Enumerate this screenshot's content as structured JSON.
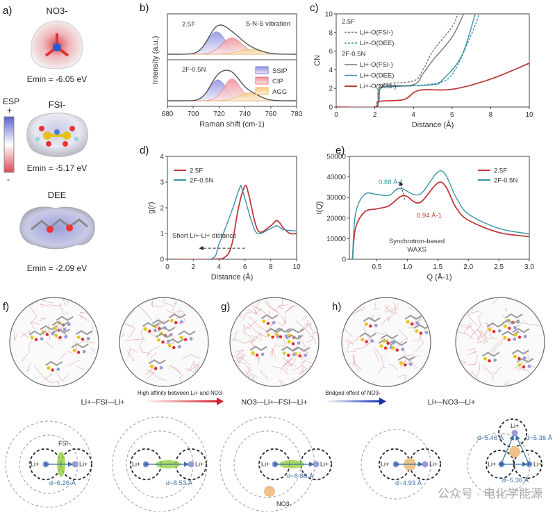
{
  "panels": {
    "a": {
      "label": "a)",
      "molecules": [
        {
          "name": "NO3-",
          "emin": "Emin = -6.05 eV"
        },
        {
          "name": "FSI-",
          "emin": "Emin = -5.17 eV"
        },
        {
          "name": "DEE",
          "emin": "Emin = -2.09 eV"
        }
      ],
      "esp": {
        "title": "ESP",
        "plus": "+",
        "minus": "-"
      }
    },
    "f": {
      "label": "f)"
    },
    "g": {
      "label": "g)"
    },
    "h": {
      "label": "h)"
    }
  },
  "colors": {
    "red": "#c0393b",
    "teal": "#3a93a8",
    "gray": "#777777",
    "ssip": "#8d8fe0",
    "cip": "#f08c95",
    "agg": "#f5d08a"
  },
  "chart_data": [
    {
      "id": "b",
      "label": "b)",
      "type": "area",
      "xlabel": "Raman shift (cm-1)",
      "ylabel": "Intensity (a.u.)",
      "xlim": [
        680,
        780
      ],
      "xticks": [
        "680",
        "700",
        "720",
        "740",
        "760",
        "780"
      ],
      "annotation": "S-N-S vibration",
      "legend": [
        "SSIP",
        "CIP",
        "AGG"
      ],
      "subplots": [
        {
          "name": "2.5F",
          "components": [
            {
              "name": "SSIP",
              "center": 718,
              "height": 0.62,
              "width": 7
            },
            {
              "name": "CIP",
              "center": 730,
              "height": 0.45,
              "width": 8
            },
            {
              "name": "AGG",
              "center": 744,
              "height": 0.13,
              "width": 9
            }
          ]
        },
        {
          "name": "2F-0.5N",
          "components": [
            {
              "name": "SSIP",
              "center": 719,
              "height": 0.58,
              "width": 6.5
            },
            {
              "name": "CIP",
              "center": 730,
              "height": 0.6,
              "width": 6.5
            },
            {
              "name": "AGG",
              "center": 743,
              "height": 0.22,
              "width": 8
            }
          ]
        }
      ]
    },
    {
      "id": "c",
      "label": "c)",
      "type": "line",
      "xlabel": "Distance (Å)",
      "ylabel": "CN",
      "xlim": [
        0,
        10
      ],
      "ylim": [
        0,
        10
      ],
      "xticks": [
        "0",
        "2",
        "4",
        "6",
        "8",
        "10"
      ],
      "yticks": [
        "0",
        "2",
        "4",
        "6",
        "8",
        "10"
      ],
      "groups": [
        "2.5F",
        "2F-0.5N"
      ],
      "series": [
        {
          "name": "Li+-O(FSI-)",
          "group": "2.5F",
          "style": "dashed",
          "color": "#777777",
          "points": [
            [
              0,
              0
            ],
            [
              2,
              0
            ],
            [
              2.2,
              2
            ],
            [
              2.5,
              2.5
            ],
            [
              4,
              2.8
            ],
            [
              4.5,
              4
            ],
            [
              5,
              6
            ],
            [
              6,
              8.6
            ],
            [
              6.3,
              10
            ]
          ]
        },
        {
          "name": "Li+-O(DEE)",
          "group": "2.5F",
          "style": "dashed",
          "color": "#3a93a8",
          "points": [
            [
              0,
              0
            ],
            [
              2,
              0
            ],
            [
              2.3,
              2.1
            ],
            [
              3,
              2.2
            ],
            [
              5,
              2.5
            ],
            [
              6,
              3.5
            ],
            [
              7,
              7.8
            ],
            [
              7.4,
              10
            ]
          ]
        },
        {
          "name": "Li+-O(FSI-)",
          "group": "2F-0.5N",
          "style": "solid",
          "color": "#777777",
          "points": [
            [
              0,
              0
            ],
            [
              2,
              0
            ],
            [
              2.3,
              2.1
            ],
            [
              4,
              2.4
            ],
            [
              4.5,
              3.6
            ],
            [
              5,
              5
            ],
            [
              6,
              7.5
            ],
            [
              6.6,
              10
            ]
          ]
        },
        {
          "name": "Li+-O(DEE)",
          "group": "2F-0.5N",
          "style": "solid",
          "color": "#3a93a8",
          "points": [
            [
              0,
              0
            ],
            [
              2,
              0
            ],
            [
              2.3,
              2
            ],
            [
              3,
              2.2
            ],
            [
              5,
              2.4
            ],
            [
              5.5,
              2.9
            ],
            [
              6.5,
              5.5
            ],
            [
              7.2,
              10
            ]
          ]
        },
        {
          "name": "Li+-O(NO3-)",
          "group": "2F-0.5N",
          "style": "solid",
          "color": "#c0393b",
          "points": [
            [
              0,
              0
            ],
            [
              2,
              0
            ],
            [
              2.2,
              0.6
            ],
            [
              3.5,
              0.8
            ],
            [
              4.3,
              1.8
            ],
            [
              6,
              1.9
            ],
            [
              8,
              3
            ],
            [
              10,
              4.7
            ]
          ]
        }
      ]
    },
    {
      "id": "d",
      "label": "d)",
      "type": "line",
      "xlabel": "Distance (Å)",
      "ylabel": "g(r)",
      "xlim": [
        0,
        10
      ],
      "ylim": [
        0,
        4
      ],
      "xticks": [
        "0",
        "2",
        "4",
        "6",
        "8",
        "10"
      ],
      "yticks": [
        "0",
        "1",
        "2",
        "3",
        "4"
      ],
      "annotation": "Short Li+-Li+ distance",
      "series": [
        {
          "name": "2.5F",
          "color": "#c0393b",
          "points": [
            [
              0,
              0
            ],
            [
              3.5,
              0
            ],
            [
              4.5,
              0.1
            ],
            [
              5,
              0.6
            ],
            [
              5.5,
              2
            ],
            [
              6,
              2.85
            ],
            [
              6.3,
              2.5
            ],
            [
              6.8,
              1.4
            ],
            [
              7.2,
              1.05
            ],
            [
              8,
              1.3
            ],
            [
              8.5,
              1.5
            ],
            [
              9,
              1.2
            ],
            [
              9.5,
              1.0
            ],
            [
              10,
              1.0
            ]
          ]
        },
        {
          "name": "2F-0.5N",
          "color": "#3a93a8",
          "points": [
            [
              0,
              0
            ],
            [
              3.3,
              0
            ],
            [
              4,
              0.6
            ],
            [
              5,
              1.9
            ],
            [
              5.6,
              2.78
            ],
            [
              5.8,
              2.7
            ],
            [
              6.5,
              1.5
            ],
            [
              7,
              1
            ],
            [
              8,
              1.2
            ],
            [
              8.5,
              1.3
            ],
            [
              9,
              1.15
            ],
            [
              10,
              1.1
            ]
          ]
        }
      ]
    },
    {
      "id": "e",
      "label": "e)",
      "type": "line",
      "xlabel": "Q (Å-1)",
      "ylabel": "I(Q)",
      "xlim": [
        0.05,
        3.0
      ],
      "ylim": [
        0,
        50000
      ],
      "xticks": [
        "0.5",
        "1.0",
        "1.5",
        "2.0",
        "2.5",
        "3.0"
      ],
      "yticks": [
        "0",
        "10000",
        "20000",
        "30000",
        "40000",
        "50000"
      ],
      "annotations": [
        "0.88 Å-1",
        "0.94 Å-1",
        "Synchrotron-based",
        "WAXS"
      ],
      "series": [
        {
          "name": "2.5F",
          "color": "#c0393b",
          "points": [
            [
              0.1,
              0
            ],
            [
              0.15,
              15000
            ],
            [
              0.3,
              23000
            ],
            [
              0.5,
              24500
            ],
            [
              0.7,
              26000
            ],
            [
              0.94,
              31000
            ],
            [
              1.2,
              27500
            ],
            [
              1.55,
              37500
            ],
            [
              1.8,
              25000
            ],
            [
              2.0,
              19000
            ],
            [
              2.5,
              13000
            ],
            [
              3.0,
              11000
            ]
          ]
        },
        {
          "name": "2F-0.5N",
          "color": "#3a93a8",
          "points": [
            [
              0.1,
              0
            ],
            [
              0.15,
              22000
            ],
            [
              0.3,
              31500
            ],
            [
              0.5,
              31500
            ],
            [
              0.7,
              31000
            ],
            [
              0.88,
              34500
            ],
            [
              1.2,
              31500
            ],
            [
              1.55,
              43000
            ],
            [
              1.8,
              30000
            ],
            [
              2.0,
              22000
            ],
            [
              2.5,
              15000
            ],
            [
              3.0,
              12300
            ]
          ]
        }
      ]
    }
  ],
  "schemes": {
    "titles": [
      "Li+–FSI-–Li+",
      "NO3-–Li+–FSI-–Li+",
      "Li+–NO3-–Li+"
    ],
    "arrows": [
      "High affinity between Li+ and NO3-",
      "Bridged effect of NO3-"
    ],
    "li": "Li+",
    "fsi": "FSI-",
    "no3": "NO3-",
    "distances": [
      "d~6.26 Å",
      "d~8.53 Å",
      "d~8.88 Å",
      "d~4.93 Å",
      "d~5.46 Å",
      "d~5.36 Å",
      "d~5.36 Å"
    ]
  },
  "watermark": "公众号 · 电化学能源"
}
